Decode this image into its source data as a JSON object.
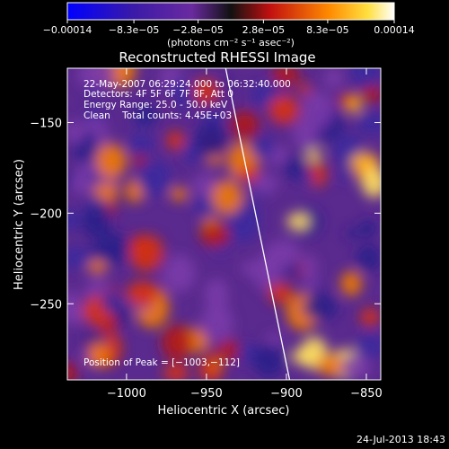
{
  "chart_data": {
    "type": "heatmap",
    "title": "Reconstructed RHESSI Image",
    "xlabel": "Heliocentric X (arcsec)",
    "ylabel": "Heliocentric Y (arcsec)",
    "xlim": [
      -1037,
      -841
    ],
    "ylim": [
      -292,
      -120
    ],
    "x_ticks": [
      -1000,
      -950,
      -900,
      -850
    ],
    "x_tick_labels": [
      "−1000",
      "−950",
      "−900",
      "−850"
    ],
    "y_ticks": [
      -150,
      -200,
      -250
    ],
    "y_tick_labels": [
      "−150",
      "−200",
      "−250"
    ],
    "colorbar": {
      "min": -0.00014,
      "max": 0.00014,
      "ticks": [
        -0.00014,
        -8.3e-05,
        -2.8e-05,
        2.8e-05,
        8.3e-05,
        0.00014
      ],
      "tick_labels": [
        "−0.00014",
        "−8.3e−05",
        "−2.8e−05",
        "2.8e−05",
        "8.3e−05",
        "0.00014"
      ],
      "unit_label": "(photons cm⁻² s⁻¹ asec⁻²)"
    },
    "annotations": [
      "22-May-2007 06:29:24.000 to 06:32:40.000",
      "Detectors: 4F 5F 6F 7F 8F, Att 0",
      "Energy Range: 25.0 - 50.0 keV",
      "Clean    Total counts: 4.45E+03"
    ],
    "peak_label": "Position of Peak = [−1003,−112]",
    "limb_line": [
      {
        "x": -938,
        "y": -120
      },
      {
        "x": -898,
        "y": -292
      }
    ],
    "grid": false,
    "legend": "none"
  },
  "footer": {
    "timestamp": "24-Jul-2013 18:43"
  }
}
